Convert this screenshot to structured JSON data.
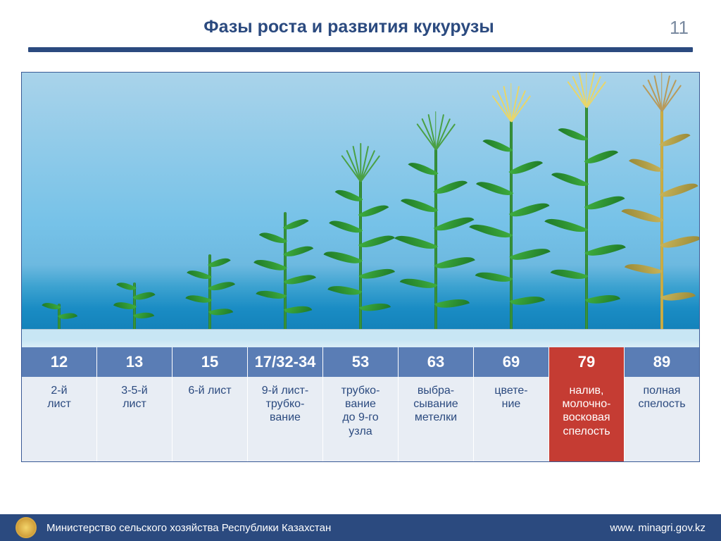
{
  "title": "Фазы роста и развития кукурузы",
  "page_number": "11",
  "footer": {
    "ministry": "Министерство сельского хозяйства Республики Казахстан",
    "url": "www. minagri.gov.kz"
  },
  "colors": {
    "primary": "#2b4a7f",
    "accent_col": "#5a7db5",
    "highlight": "#c53c33",
    "label_bg": "#e8edf4",
    "page_num": "#7a8aa0"
  },
  "stages": [
    {
      "code": "12",
      "label": "2-й\nлист",
      "highlight": false,
      "plant_height": 40,
      "leaves": 2,
      "tassel": null,
      "yellow": false
    },
    {
      "code": "13",
      "label": "3-5-й\nлист",
      "highlight": false,
      "plant_height": 70,
      "leaves": 4,
      "tassel": null,
      "yellow": false
    },
    {
      "code": "15",
      "label": "6-й лист",
      "highlight": false,
      "plant_height": 110,
      "leaves": 5,
      "tassel": null,
      "yellow": false
    },
    {
      "code": "17/32-34",
      "label": "9-й лист-\nтрубко-\nвание",
      "highlight": false,
      "plant_height": 170,
      "leaves": 7,
      "tassel": null,
      "yellow": false
    },
    {
      "code": "53",
      "label": "трубко-\nвание\nдо 9-го\nузла",
      "highlight": false,
      "plant_height": 215,
      "leaves": 8,
      "tassel": "green",
      "yellow": false
    },
    {
      "code": "63",
      "label": "выбра-\nсывание\nметелки",
      "highlight": false,
      "plant_height": 260,
      "leaves": 8,
      "tassel": "green",
      "yellow": false
    },
    {
      "code": "69",
      "label": "цвете-\nние",
      "highlight": false,
      "plant_height": 300,
      "leaves": 8,
      "tassel": "yellow",
      "yellow": false
    },
    {
      "code": "79",
      "label": "налив,\nмолочно-\nвосковая\nспелость",
      "highlight": true,
      "plant_height": 320,
      "leaves": 8,
      "tassel": "yellow",
      "yellow": false
    },
    {
      "code": "89",
      "label": "полная\nспелость",
      "highlight": false,
      "plant_height": 315,
      "leaves": 7,
      "tassel": "brown",
      "yellow": true
    }
  ],
  "chart": {
    "col_width_pct": 11.11,
    "ground_height": 26
  }
}
